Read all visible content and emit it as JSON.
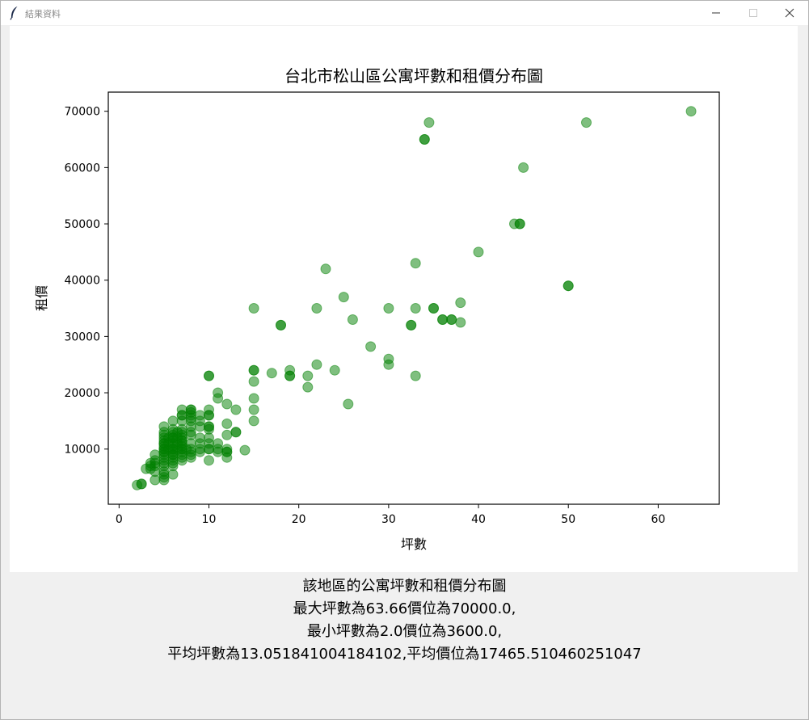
{
  "window": {
    "title": "結果資料",
    "icon": "feather-icon",
    "controls": [
      "minimize-icon",
      "maximize-icon",
      "close-icon"
    ]
  },
  "colors": {
    "point": "#008000",
    "axis": "#000000",
    "background": "#ffffff",
    "window_background": "#f0f0f0"
  },
  "chart_data": {
    "type": "scatter",
    "title": "台北市松山區公寓坪數和租價分布圖",
    "xlabel": "坪數",
    "ylabel": "租價",
    "xlim": [
      -1.2,
      66.8
    ],
    "ylim": [
      200,
      73400
    ],
    "xticks": [
      0,
      10,
      20,
      30,
      40,
      50,
      60
    ],
    "yticks": [
      10000,
      20000,
      30000,
      40000,
      50000,
      60000,
      70000
    ],
    "grid": false,
    "legend": "none",
    "marker_alpha": 0.5,
    "points": [
      [
        63.66,
        70000
      ],
      [
        34.5,
        68000
      ],
      [
        52,
        68000
      ],
      [
        34,
        65000
      ],
      [
        34,
        65000
      ],
      [
        45,
        60000
      ],
      [
        44,
        50000
      ],
      [
        44.6,
        50000
      ],
      [
        44.6,
        50000
      ],
      [
        40,
        45000
      ],
      [
        33,
        43000
      ],
      [
        23,
        42000
      ],
      [
        50,
        39000
      ],
      [
        50,
        39000
      ],
      [
        38,
        36000
      ],
      [
        25,
        37000
      ],
      [
        15,
        35000
      ],
      [
        22,
        35000
      ],
      [
        30,
        35000
      ],
      [
        33,
        35000
      ],
      [
        35,
        35000
      ],
      [
        35,
        35000
      ],
      [
        36,
        33000
      ],
      [
        36,
        33000
      ],
      [
        37,
        33000
      ],
      [
        37,
        33000
      ],
      [
        38,
        32500
      ],
      [
        26,
        33000
      ],
      [
        18,
        32000
      ],
      [
        18,
        32000
      ],
      [
        32.5,
        32000
      ],
      [
        32.5,
        32000
      ],
      [
        28,
        28200
      ],
      [
        30,
        26000
      ],
      [
        30,
        25000
      ],
      [
        22,
        25000
      ],
      [
        15,
        24000
      ],
      [
        15,
        24000
      ],
      [
        19,
        24000
      ],
      [
        24,
        24000
      ],
      [
        17,
        23500
      ],
      [
        19,
        23000
      ],
      [
        19,
        23000
      ],
      [
        21,
        23000
      ],
      [
        33,
        23000
      ],
      [
        10,
        23000
      ],
      [
        10,
        23000
      ],
      [
        15,
        22000
      ],
      [
        21,
        21000
      ],
      [
        11,
        20000
      ],
      [
        11,
        19000
      ],
      [
        15,
        19000
      ],
      [
        25.5,
        18000
      ],
      [
        12,
        18000
      ],
      [
        10,
        17000
      ],
      [
        13,
        17000
      ],
      [
        15,
        17000
      ],
      [
        7,
        17000
      ],
      [
        8,
        17000
      ],
      [
        8,
        17000
      ],
      [
        8,
        16500
      ],
      [
        7,
        16000
      ],
      [
        7,
        16000
      ],
      [
        8,
        16000
      ],
      [
        9,
        16000
      ],
      [
        10,
        16000
      ],
      [
        10,
        16000
      ],
      [
        8,
        15500
      ],
      [
        9,
        15000
      ],
      [
        6,
        15000
      ],
      [
        7,
        15000
      ],
      [
        8,
        15000
      ],
      [
        15,
        15000
      ],
      [
        12,
        14500
      ],
      [
        5,
        14000
      ],
      [
        8,
        14000
      ],
      [
        9,
        14000
      ],
      [
        10,
        14000
      ],
      [
        10,
        14000
      ],
      [
        10,
        13500
      ],
      [
        6,
        13500
      ],
      [
        7,
        13500
      ],
      [
        8,
        13000
      ],
      [
        5,
        13000
      ],
      [
        6,
        13000
      ],
      [
        6.5,
        13000
      ],
      [
        7,
        13000
      ],
      [
        13,
        13000
      ],
      [
        13,
        13000
      ],
      [
        12,
        12500
      ],
      [
        5,
        12500
      ],
      [
        6,
        12500
      ],
      [
        7,
        12500
      ],
      [
        8,
        12500
      ],
      [
        5,
        12000
      ],
      [
        5.5,
        12000
      ],
      [
        6,
        12000
      ],
      [
        6.5,
        12000
      ],
      [
        7,
        12000
      ],
      [
        9,
        12000
      ],
      [
        10,
        12000
      ],
      [
        5,
        11500
      ],
      [
        6,
        11500
      ],
      [
        7,
        11500
      ],
      [
        5,
        11000
      ],
      [
        5.5,
        11000
      ],
      [
        6,
        11000
      ],
      [
        6.5,
        11000
      ],
      [
        7,
        11000
      ],
      [
        8,
        11000
      ],
      [
        9,
        11000
      ],
      [
        10,
        11000
      ],
      [
        11,
        11000
      ],
      [
        5,
        10500
      ],
      [
        6,
        10500
      ],
      [
        7,
        10500
      ],
      [
        5,
        10000
      ],
      [
        5.5,
        10000
      ],
      [
        6,
        10000
      ],
      [
        6.5,
        10000
      ],
      [
        7,
        10000
      ],
      [
        7.5,
        10000
      ],
      [
        8,
        10000
      ],
      [
        9,
        10000
      ],
      [
        10,
        10000
      ],
      [
        10,
        10000
      ],
      [
        11,
        10000
      ],
      [
        12,
        10000
      ],
      [
        14,
        9800
      ],
      [
        5,
        9500
      ],
      [
        6,
        9500
      ],
      [
        7,
        9500
      ],
      [
        8,
        9500
      ],
      [
        9,
        9500
      ],
      [
        11,
        9500
      ],
      [
        12,
        9500
      ],
      [
        12,
        9500
      ],
      [
        4,
        9000
      ],
      [
        5,
        9000
      ],
      [
        6,
        9000
      ],
      [
        7,
        9000
      ],
      [
        8,
        9000
      ],
      [
        5,
        8500
      ],
      [
        6,
        8500
      ],
      [
        7,
        8500
      ],
      [
        8,
        8500
      ],
      [
        12,
        8500
      ],
      [
        4,
        8000
      ],
      [
        5,
        8000
      ],
      [
        6,
        8000
      ],
      [
        7,
        8000
      ],
      [
        10,
        8000
      ],
      [
        4,
        7500
      ],
      [
        5,
        7500
      ],
      [
        6,
        7500
      ],
      [
        3.5,
        7500
      ],
      [
        3.5,
        7000
      ],
      [
        4,
        7000
      ],
      [
        5,
        7000
      ],
      [
        6,
        7000
      ],
      [
        3,
        6500
      ],
      [
        3.5,
        6500
      ],
      [
        4,
        6000
      ],
      [
        5,
        6000
      ],
      [
        5,
        5500
      ],
      [
        6,
        5500
      ],
      [
        4,
        4500
      ],
      [
        5,
        4500
      ],
      [
        2.5,
        3800
      ],
      [
        2.5,
        3800
      ],
      [
        2,
        3600
      ],
      [
        5,
        5000
      ],
      [
        6,
        10000
      ],
      [
        5,
        11000
      ],
      [
        6,
        12000
      ],
      [
        7,
        11500
      ],
      [
        5,
        10000
      ],
      [
        6,
        9000
      ],
      [
        7,
        10000
      ],
      [
        5,
        9500
      ]
    ]
  },
  "summary": {
    "line1": "該地區的公寓坪數和租價分布圖",
    "line2": "最大坪數為63.66價位為70000.0,",
    "line3": "最小坪數為2.0價位為3600.0,",
    "line4": "平均坪數為13.051841004184102,平均價位為17465.510460251047"
  }
}
